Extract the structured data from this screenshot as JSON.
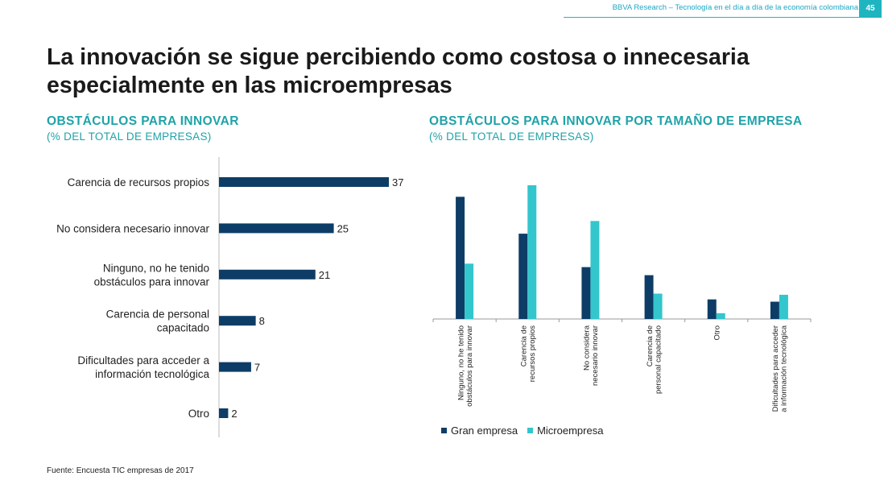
{
  "header": {
    "text": "BBVA Research – Tecnología en el día a día de la economía colombiana",
    "page_number": "45"
  },
  "title": {
    "line1": "La innovación se sigue percibiendo como costosa o innecesaria",
    "line2": "especialmente en las microempresas"
  },
  "left_chart": {
    "title": "OBSTÁCULOS PARA INNOVAR",
    "subtitle": "(% DEL TOTAL DE EMPRESAS)"
  },
  "right_chart": {
    "title": "OBSTÁCULOS PARA INNOVAR POR TAMAÑO DE EMPRESA",
    "subtitle": "(% DEL TOTAL DE EMPRESAS)"
  },
  "source": "Fuente: Encuesta TIC empresas de 2017",
  "colors": {
    "dark_navy": "#0d3d66",
    "turquoise": "#33c6cc",
    "teal_text": "#1fa3a8"
  },
  "chart_data": [
    {
      "type": "bar",
      "orientation": "horizontal",
      "categories": [
        [
          "Carencia de recursos propios"
        ],
        [
          "No considera necesario innovar"
        ],
        [
          "Ninguno, no he tenido",
          "obstáculos para innovar"
        ],
        [
          "Carencia de personal",
          "capacitado"
        ],
        [
          "Dificultades para acceder a",
          "información tecnológica"
        ],
        [
          "Otro"
        ]
      ],
      "values": [
        37,
        25,
        21,
        8,
        7,
        2
      ],
      "xlim": [
        0,
        37
      ]
    },
    {
      "type": "bar",
      "orientation": "vertical",
      "categories": [
        [
          "Ninguno, no he tenido",
          "obstáculos para innovar"
        ],
        [
          "Carencia de",
          "recursos propios"
        ],
        [
          "No considera",
          "necesario innovar"
        ],
        [
          "Carencia de",
          "personal capacitado"
        ],
        [
          "Otro"
        ],
        [
          "Dificultades para acceder",
          "a información tecnológica"
        ]
      ],
      "series": [
        {
          "name": "Gran empresa",
          "values": [
            53,
            37,
            22.5,
            19,
            8.5,
            7.5
          ]
        },
        {
          "name": "Microempresa",
          "values": [
            24,
            58,
            42.5,
            11,
            2.5,
            10.5
          ]
        }
      ],
      "ylim": [
        0,
        58
      ]
    }
  ]
}
